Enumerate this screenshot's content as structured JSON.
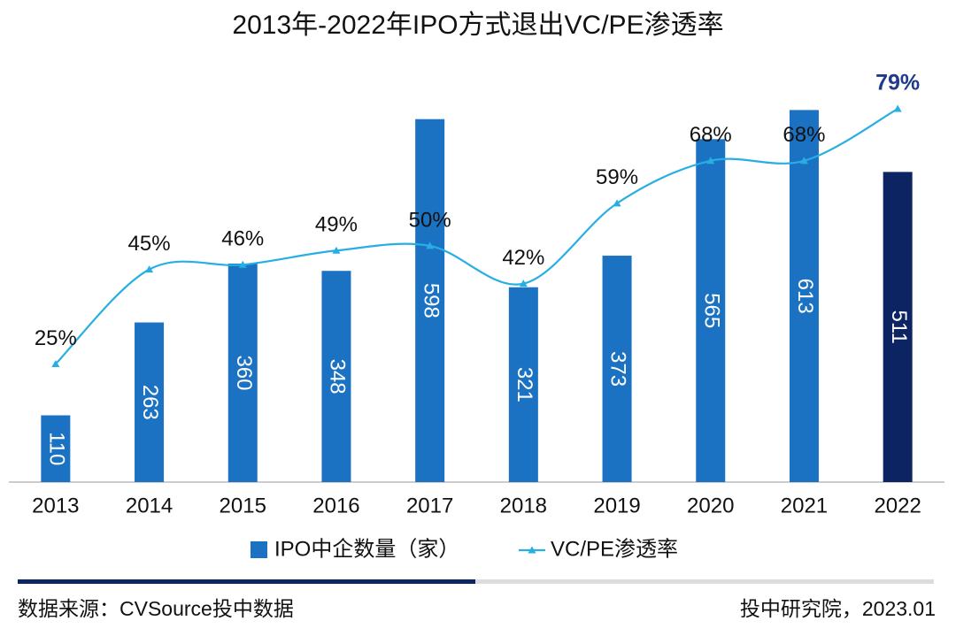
{
  "chart_data": {
    "type": "bar-line",
    "title": "2013年-2022年IPO方式退出VC/PE渗透率",
    "categories": [
      "2013",
      "2014",
      "2015",
      "2016",
      "2017",
      "2018",
      "2019",
      "2020",
      "2021",
      "2022"
    ],
    "series": [
      {
        "name": "IPO中企数量（家）",
        "type": "bar",
        "color": "#1b72c2",
        "colors": [
          "#1b72c2",
          "#1b72c2",
          "#1b72c2",
          "#1b72c2",
          "#1b72c2",
          "#1b72c2",
          "#1b72c2",
          "#1b72c2",
          "#1b72c2",
          "#0c2461"
        ],
        "values": [
          110,
          263,
          360,
          348,
          598,
          321,
          373,
          565,
          613,
          511
        ]
      },
      {
        "name": "VC/PE渗透率",
        "type": "line",
        "axis": "y2",
        "color": "#27aee3",
        "values": [
          25,
          45,
          46,
          49,
          50,
          42,
          59,
          68,
          68,
          79
        ],
        "value_labels": [
          "25%",
          "45%",
          "46%",
          "49%",
          "50%",
          "42%",
          "59%",
          "68%",
          "68%",
          "79%"
        ]
      }
    ],
    "ylim": [
      0,
      650
    ],
    "y2lim": [
      0,
      83.5
    ],
    "source": "数据来源：CVSource投中数据",
    "credit": "投中研究院，2023.01"
  }
}
